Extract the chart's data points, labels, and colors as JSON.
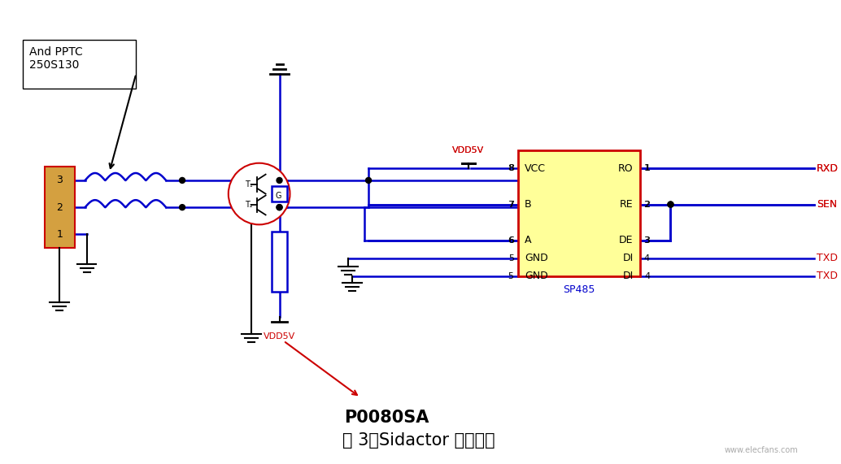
{
  "bg_color": "#ffffff",
  "title": "图 3：Sidactor 保护方案",
  "title_fontsize": 15,
  "blue": "#0000cc",
  "red": "#cc0000",
  "black": "#000000",
  "yellow_fill": "#ffff99",
  "connector_fill": "#d4a040",
  "ic_border": "#cc0000",
  "ic_label": "SP485",
  "ic_pins_left": [
    "VCC",
    "B",
    "A",
    "GND"
  ],
  "ic_pins_right": [
    "RO",
    "RE",
    "DE",
    "DI"
  ],
  "ic_pin_nums_left": [
    "8",
    "7",
    "6",
    "5"
  ],
  "ic_pin_nums_right": [
    "1",
    "2",
    "3",
    "4"
  ],
  "vdd5v_label": "VDD5V",
  "p0080sa_label": "P0080SA",
  "annotation_text": "And PPTC\n250S130",
  "rxd_label": "RXD",
  "sen_label": "SEN",
  "txd_label": "TXD"
}
